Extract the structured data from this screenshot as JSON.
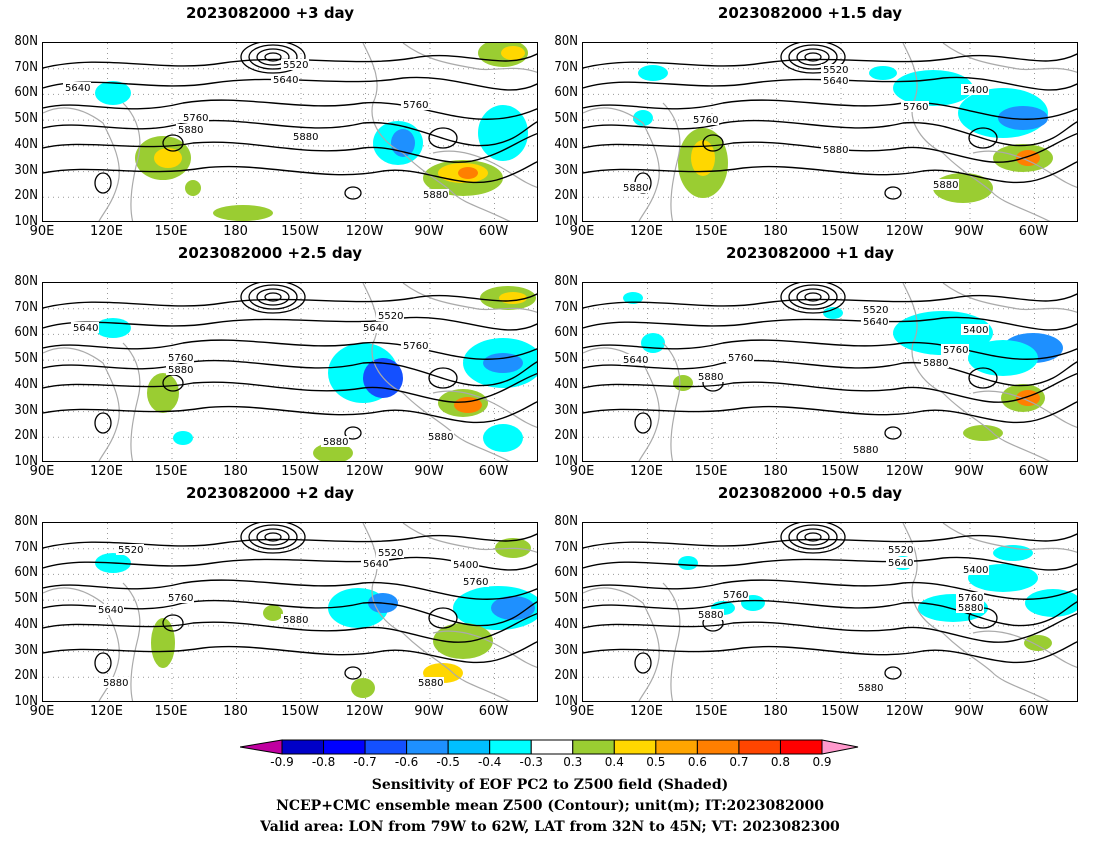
{
  "panels": [
    {
      "title": "2023082000  +3 day"
    },
    {
      "title": "2023082000  +1.5  day"
    },
    {
      "title": "2023082000  +2.5  day"
    },
    {
      "title": "2023082000  +1  day"
    },
    {
      "title": "2023082000  +2  day"
    },
    {
      "title": "2023082000  +0.5  day"
    }
  ],
  "lat_labels": [
    "80N",
    "70N",
    "60N",
    "50N",
    "40N",
    "30N",
    "20N",
    "10N"
  ],
  "lon_labels": [
    "90E",
    "120E",
    "150E",
    "180",
    "150W",
    "120W",
    "90W",
    "60W"
  ],
  "contour_labels": {
    "p0": [
      "5640",
      "5520",
      "5640",
      "5760",
      "5760",
      "5880",
      "5880",
      "5880"
    ],
    "p1": [
      "5520",
      "5640",
      "5400",
      "5760",
      "5760",
      "5880",
      "5880",
      "5880"
    ],
    "p2": [
      "5640",
      "5520",
      "5640",
      "5760",
      "5760",
      "5880",
      "5880",
      "5880"
    ],
    "p3": [
      "5520",
      "5640",
      "5400",
      "5640",
      "5760",
      "5760",
      "5880",
      "5880",
      "5880"
    ],
    "p4": [
      "5520",
      "5520",
      "5640",
      "5400",
      "5640",
      "5760",
      "5760",
      "5880",
      "5880",
      "5880"
    ],
    "p5": [
      "5520",
      "5640",
      "5400",
      "5760",
      "5760",
      "5880",
      "5880",
      "5880"
    ]
  },
  "colorbar": {
    "ticks": [
      "-0.9",
      "-0.8",
      "-0.7",
      "-0.6",
      "-0.5",
      "-0.4",
      "-0.3",
      "0.3",
      "0.4",
      "0.5",
      "0.6",
      "0.7",
      "0.8",
      "0.9"
    ],
    "colors": [
      "#c000a0",
      "#0000c8",
      "#0000ff",
      "#1450ff",
      "#1e90ff",
      "#00bfff",
      "#00ffff",
      "#ffffff",
      "#9acd32",
      "#ffd700",
      "#ffa500",
      "#ff7f00",
      "#ff4500",
      "#ff0000",
      "#ff99cc"
    ]
  },
  "caption": {
    "line1": "Sensitivity of EOF PC2 to Z500 field (Shaded)",
    "line2": "NCEP+CMC ensemble mean Z500 (Contour); unit(m); IT:2023082000",
    "line3": "Valid area: LON from 79W to 62W, LAT from 32N to 45N; VT: 2023082300"
  }
}
